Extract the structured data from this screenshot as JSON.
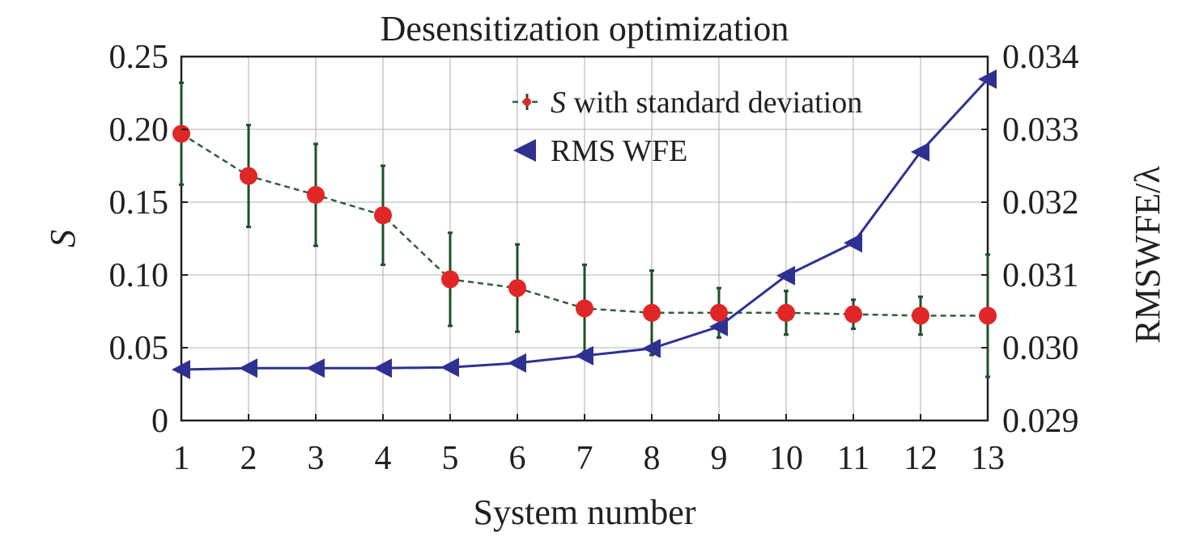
{
  "chart_data": {
    "type": "line",
    "title": "Desensitization optimization",
    "xlabel": "System number",
    "ylabel": "S",
    "y2label": "RMSWFE/λ",
    "x": [
      1,
      2,
      3,
      4,
      5,
      6,
      7,
      8,
      9,
      10,
      11,
      12,
      13
    ],
    "xlim": [
      1,
      13
    ],
    "ylim": [
      0,
      0.25
    ],
    "y2lim": [
      0.029,
      0.034
    ],
    "x_ticks": [
      "1",
      "2",
      "3",
      "4",
      "5",
      "6",
      "7",
      "8",
      "9",
      "10",
      "11",
      "12",
      "13"
    ],
    "y_ticks": [
      "0",
      "0.05",
      "0.10",
      "0.15",
      "0.20",
      "0.25"
    ],
    "y2_ticks": [
      "0.029",
      "0.030",
      "0.031",
      "0.032",
      "0.033",
      "0.034"
    ],
    "grid": true,
    "legend_position": "top-right",
    "series": [
      {
        "name": "S with standard deviation",
        "legend_prefix": "S",
        "legend_suffix": " with standard deviation",
        "axis": "left",
        "marker": "circle",
        "line_style": "dashed",
        "line_color": "#2e5e3a",
        "marker_color": "#e02626",
        "errorbar_color": "#1f4f2a",
        "values": [
          0.197,
          0.168,
          0.155,
          0.141,
          0.097,
          0.091,
          0.077,
          0.074,
          0.074,
          0.074,
          0.073,
          0.072,
          0.072
        ],
        "error": [
          0.035,
          0.035,
          0.035,
          0.034,
          0.032,
          0.03,
          0.03,
          0.029,
          0.017,
          0.015,
          0.01,
          0.013,
          0.042
        ]
      },
      {
        "name": "RMS WFE",
        "axis": "right",
        "marker": "triangle-left",
        "line_style": "solid",
        "line_color": "#2e3192",
        "marker_color": "#2e3192",
        "values": [
          0.0297,
          0.02972,
          0.02972,
          0.02972,
          0.02973,
          0.02979,
          0.02989,
          0.02999,
          0.03029,
          0.03099,
          0.03144,
          0.03269,
          0.03369
        ]
      }
    ]
  }
}
